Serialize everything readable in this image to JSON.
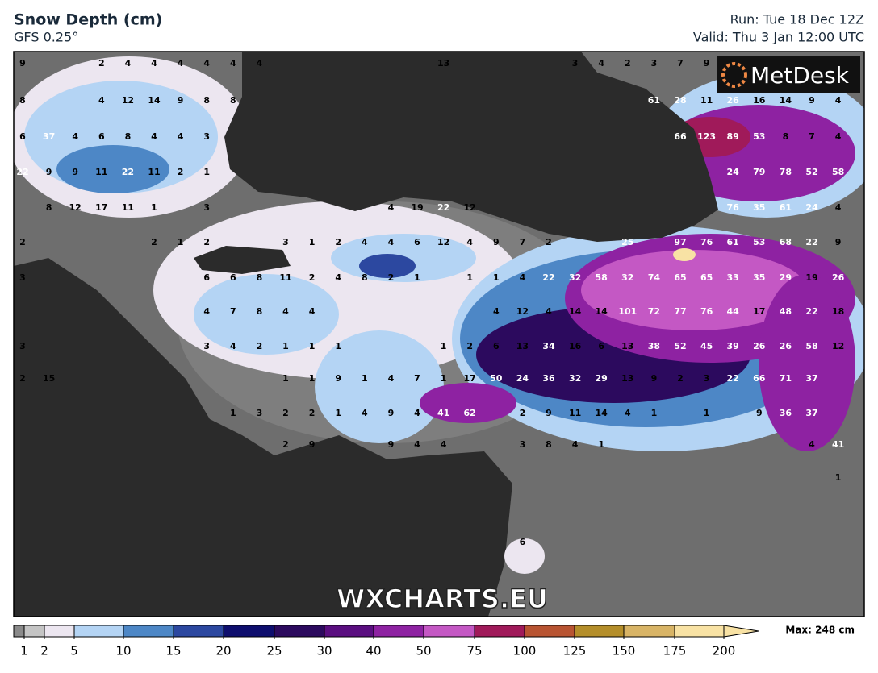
{
  "header": {
    "title": "Snow Depth (cm)",
    "model": "GFS 0.25°",
    "run": "Run: Tue 18 Dec 12Z",
    "valid": "Valid: Thu 3 Jan 12:00 UTC"
  },
  "logo": "MetDesk",
  "watermark": "WXCHARTS.EU",
  "map": {
    "label_rows": [
      [
        9,
        null,
        null,
        2,
        4,
        4,
        4,
        4,
        4,
        4,
        null,
        null,
        null,
        null,
        null,
        null,
        13,
        null,
        null,
        null,
        null,
        3,
        4,
        2,
        3,
        7,
        9,
        null,
        null,
        null,
        null,
        null
      ],
      [
        8,
        null,
        null,
        4,
        12,
        14,
        9,
        8,
        8,
        null,
        null,
        null,
        null,
        null,
        null,
        null,
        null,
        null,
        null,
        null,
        null,
        null,
        null,
        null,
        61,
        28,
        11,
        26,
        16,
        14,
        9,
        4
      ],
      [
        6,
        37,
        4,
        6,
        8,
        4,
        4,
        3,
        null,
        null,
        null,
        null,
        null,
        null,
        null,
        null,
        null,
        null,
        null,
        null,
        null,
        null,
        null,
        null,
        null,
        66,
        123,
        89,
        53,
        8,
        7,
        4
      ],
      [
        22,
        9,
        9,
        11,
        22,
        11,
        2,
        1,
        null,
        null,
        null,
        null,
        null,
        null,
        null,
        null,
        null,
        null,
        null,
        null,
        null,
        null,
        null,
        null,
        null,
        null,
        null,
        24,
        79,
        78,
        52,
        58
      ],
      [
        null,
        8,
        12,
        17,
        11,
        1,
        null,
        3,
        null,
        null,
        null,
        null,
        null,
        null,
        4,
        19,
        22,
        12,
        null,
        null,
        null,
        null,
        null,
        null,
        null,
        null,
        null,
        76,
        35,
        61,
        24,
        4
      ],
      [
        2,
        null,
        null,
        null,
        null,
        2,
        1,
        2,
        null,
        null,
        3,
        1,
        2,
        4,
        4,
        6,
        12,
        4,
        9,
        7,
        2,
        null,
        null,
        25,
        null,
        97,
        76,
        61,
        53,
        68,
        22,
        9
      ],
      [
        3,
        null,
        null,
        null,
        null,
        null,
        null,
        6,
        6,
        8,
        11,
        2,
        4,
        8,
        2,
        1,
        null,
        1,
        1,
        4,
        22,
        32,
        58,
        32,
        74,
        65,
        65,
        33,
        35,
        29,
        19,
        26
      ],
      [
        null,
        null,
        null,
        null,
        null,
        null,
        null,
        4,
        7,
        8,
        4,
        4,
        null,
        null,
        null,
        null,
        null,
        null,
        4,
        12,
        4,
        14,
        14,
        101,
        72,
        77,
        76,
        44,
        17,
        48,
        22,
        18
      ],
      [
        3,
        null,
        null,
        null,
        null,
        null,
        null,
        3,
        4,
        2,
        1,
        1,
        1,
        null,
        null,
        null,
        1,
        2,
        6,
        13,
        34,
        16,
        6,
        13,
        38,
        52,
        45,
        39,
        26,
        26,
        58,
        12
      ],
      [
        2,
        15,
        null,
        null,
        null,
        null,
        null,
        null,
        null,
        null,
        1,
        1,
        9,
        1,
        4,
        7,
        1,
        17,
        50,
        24,
        36,
        32,
        29,
        13,
        9,
        2,
        3,
        22,
        66,
        71,
        37,
        null
      ],
      [
        null,
        null,
        null,
        null,
        null,
        null,
        null,
        null,
        1,
        3,
        2,
        2,
        1,
        4,
        9,
        4,
        41,
        62,
        null,
        2,
        9,
        11,
        14,
        4,
        1,
        null,
        1,
        null,
        9,
        36,
        37,
        null
      ],
      [
        null,
        null,
        null,
        null,
        null,
        null,
        null,
        null,
        null,
        null,
        2,
        9,
        null,
        null,
        9,
        4,
        4,
        null,
        null,
        3,
        8,
        4,
        1,
        null,
        null,
        null,
        null,
        null,
        null,
        null,
        4,
        41
      ],
      [
        null,
        null,
        null,
        null,
        null,
        null,
        null,
        null,
        null,
        null,
        null,
        null,
        null,
        null,
        null,
        null,
        null,
        null,
        null,
        null,
        null,
        null,
        null,
        null,
        null,
        null,
        null,
        null,
        null,
        null,
        null,
        1
      ],
      [
        null,
        null,
        null,
        null,
        null,
        null,
        null,
        null,
        null,
        null,
        null,
        null,
        null,
        null,
        null,
        null,
        null,
        null,
        null,
        6,
        null,
        null,
        null,
        null,
        null,
        null,
        null,
        null,
        null,
        null,
        null,
        null
      ]
    ]
  },
  "colorbar": {
    "ticks": [
      1,
      2,
      5,
      10,
      15,
      20,
      25,
      30,
      40,
      50,
      75,
      100,
      125,
      150,
      175,
      200
    ],
    "colors": [
      "#8a8a8a",
      "#c4c4c4",
      "#ece6f0",
      "#b4d4f4",
      "#4d87c6",
      "#2c48a0",
      "#0e0e6e",
      "#2c0a5e",
      "#5a0e80",
      "#8e22a2",
      "#c458c4",
      "#a01a5a",
      "#b85432",
      "#b48e2a",
      "#d8b466",
      "#f8e2a4"
    ],
    "max_label": "Max: 248 cm"
  }
}
